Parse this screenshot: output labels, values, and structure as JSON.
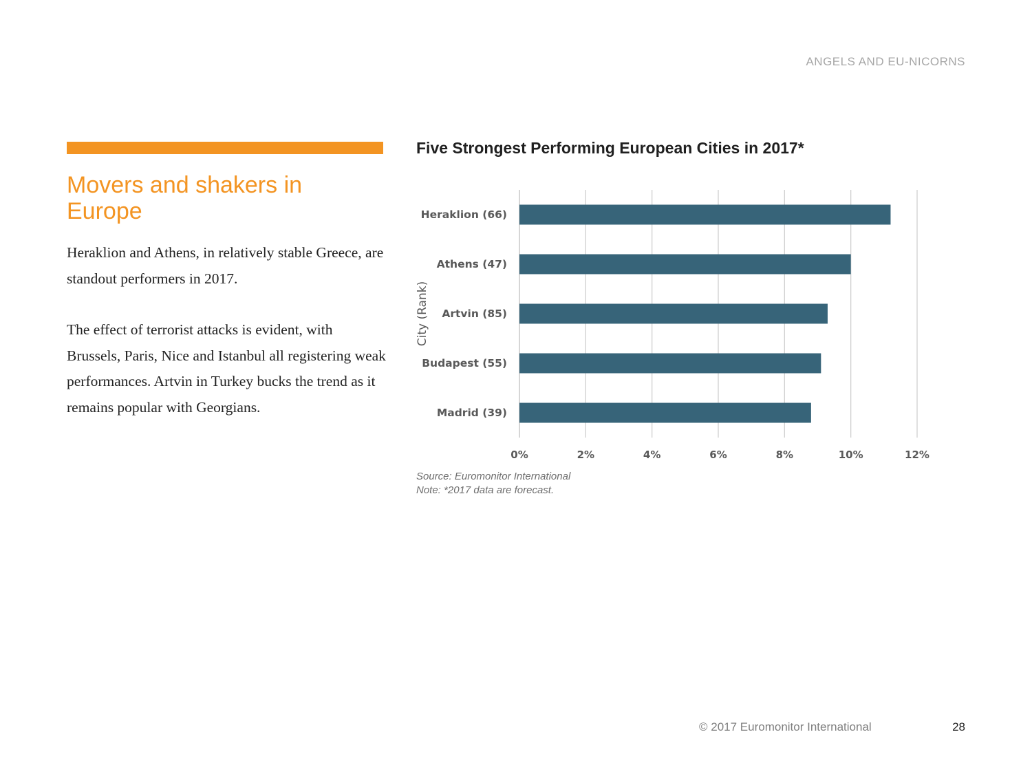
{
  "header": {
    "label": "ANGELS AND EU-NICORNS"
  },
  "section": {
    "title": "Movers and shakers in Europe",
    "paragraphs": [
      "Heraklion and Athens, in relatively stable Greece, are standout performers in 2017.",
      "The effect of terrorist attacks is evident, with Brussels, Paris, Nice and Istanbul all registering weak performances. Artvin in Turkey bucks the trend as it remains popular with Georgians."
    ]
  },
  "chart_data": {
    "type": "bar",
    "orientation": "horizontal",
    "title": "Five Strongest Performing European Cities in 2017*",
    "xlabel": "",
    "ylabel": "City (Rank)",
    "categories": [
      "Heraklion (66)",
      "Athens (47)",
      "Artvin (85)",
      "Budapest (55)",
      "Madrid (39)"
    ],
    "values": [
      11.2,
      10.0,
      9.3,
      9.1,
      8.8
    ],
    "xlim": [
      0,
      12
    ],
    "x_ticks": [
      "0%",
      "2%",
      "4%",
      "6%",
      "8%",
      "10%",
      "12%"
    ],
    "grid": true,
    "bar_color": "#376479",
    "grid_color": "#d0d0d0"
  },
  "notes": {
    "source": "Source: Euromonitor International",
    "note": "Note: *2017 data are forecast."
  },
  "footer": {
    "copyright": "© 2017 Euromonitor International",
    "page_number": "28"
  },
  "colors": {
    "accent": "#f39422",
    "text": "#222222",
    "muted": "#a6a6a6"
  }
}
